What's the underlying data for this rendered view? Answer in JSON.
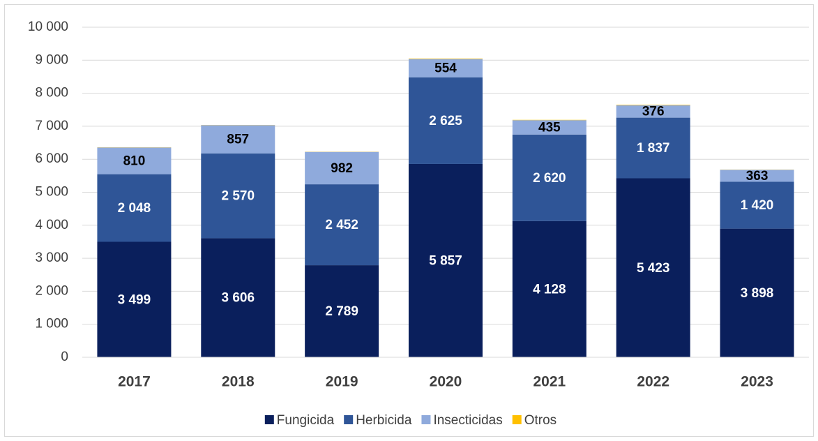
{
  "chart_data": {
    "type": "stacked_bar",
    "categories": [
      "2017",
      "2018",
      "2019",
      "2020",
      "2021",
      "2022",
      "2023"
    ],
    "series": [
      {
        "name": "Fungicida",
        "color": "#0a1f5c",
        "label_color": "#ffffff",
        "values": [
          3499,
          3606,
          2789,
          5857,
          4128,
          5423,
          3898
        ],
        "value_labels": [
          "3 499",
          "3 606",
          "2 789",
          "5 857",
          "4 128",
          "5 423",
          "3 898"
        ]
      },
      {
        "name": "Herbicida",
        "color": "#2f5597",
        "label_color": "#ffffff",
        "values": [
          2048,
          2570,
          2452,
          2625,
          2620,
          1837,
          1420
        ],
        "value_labels": [
          "2 048",
          "2 570",
          "2 452",
          "2 625",
          "2 620",
          "1 837",
          "1 420"
        ]
      },
      {
        "name": "Insecticidas",
        "color": "#8faadc",
        "label_color": "#000000",
        "values": [
          810,
          857,
          982,
          554,
          435,
          376,
          363
        ],
        "value_labels": [
          "810",
          "857",
          "982",
          "554",
          "435",
          "376",
          "363"
        ]
      },
      {
        "name": "Otros",
        "color": "#ffc000",
        "values": [
          5,
          5,
          5,
          15,
          10,
          15,
          5
        ]
      }
    ],
    "ylim": [
      0,
      10000
    ],
    "yticks": [
      0,
      {
        "value": 1000,
        "label": "1 000"
      },
      {
        "value": 2000,
        "label": "2 000"
      },
      {
        "value": 3000,
        "label": "3 000"
      },
      {
        "value": 4000,
        "label": "4 000"
      },
      {
        "value": 5000,
        "label": "5 000"
      },
      {
        "value": 6000,
        "label": "6 000"
      },
      {
        "value": 7000,
        "label": "7 000"
      },
      {
        "value": 8000,
        "label": "8 000"
      },
      {
        "value": 9000,
        "label": "9 000"
      },
      {
        "value": 10000,
        "label": "10 000"
      }
    ],
    "grid": true,
    "legend": "bottom"
  }
}
